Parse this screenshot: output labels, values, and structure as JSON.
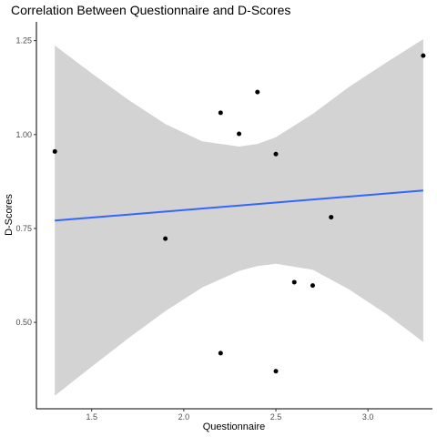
{
  "chart_data": {
    "type": "scatter",
    "title": "Correlation Between Questionnaire and D-Scores",
    "xlabel": "Questionnaire",
    "ylabel": "D-Scores",
    "xlim": [
      1.2,
      3.35
    ],
    "ylim": [
      0.27,
      1.3
    ],
    "x_ticks": [
      1.5,
      2.0,
      2.5,
      3.0
    ],
    "x_tick_labels": [
      "1.5",
      "2.0",
      "2.5",
      "3.0"
    ],
    "y_ticks": [
      0.5,
      0.75,
      1.0,
      1.25
    ],
    "y_tick_labels": [
      "0.50",
      "0.75",
      "1.00",
      "1.25"
    ],
    "grid": false,
    "points": [
      {
        "x": 1.3,
        "y": 0.955
      },
      {
        "x": 1.9,
        "y": 0.723
      },
      {
        "x": 2.2,
        "y": 1.058
      },
      {
        "x": 2.2,
        "y": 0.418
      },
      {
        "x": 2.3,
        "y": 1.002
      },
      {
        "x": 2.4,
        "y": 1.113
      },
      {
        "x": 2.5,
        "y": 0.948
      },
      {
        "x": 2.5,
        "y": 0.37
      },
      {
        "x": 2.6,
        "y": 0.607
      },
      {
        "x": 2.7,
        "y": 0.598
      },
      {
        "x": 2.8,
        "y": 0.78
      },
      {
        "x": 3.3,
        "y": 1.21
      }
    ],
    "fit_line": {
      "x": [
        1.3,
        3.3
      ],
      "y": [
        0.771,
        0.851
      ],
      "color": "#3366FF"
    },
    "confidence_band": {
      "x": [
        1.3,
        1.5,
        1.7,
        1.9,
        2.1,
        2.3,
        2.4,
        2.5,
        2.7,
        2.9,
        3.1,
        3.3
      ],
      "upper": [
        1.237,
        1.163,
        1.092,
        1.028,
        0.982,
        0.968,
        0.975,
        0.993,
        1.055,
        1.128,
        1.192,
        1.254
      ],
      "lower": [
        0.305,
        0.382,
        0.458,
        0.53,
        0.593,
        0.637,
        0.65,
        0.656,
        0.64,
        0.587,
        0.522,
        0.448
      ],
      "color": "#D3D3D3"
    },
    "point_color": "#000000"
  }
}
